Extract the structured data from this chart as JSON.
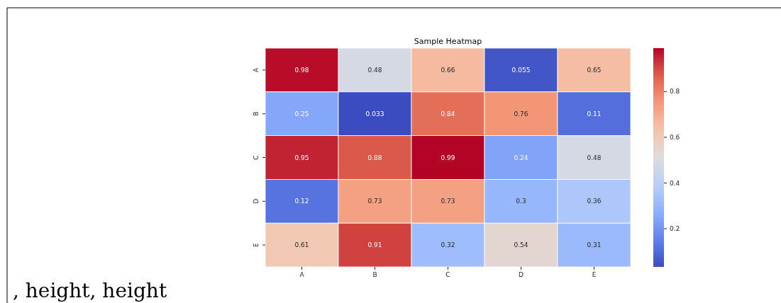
{
  "chart_data": {
    "type": "heatmap",
    "title": "Sample Heatmap",
    "categories": [
      "A",
      "B",
      "C",
      "D",
      "E"
    ],
    "y_categories": [
      "A",
      "B",
      "C",
      "D",
      "E"
    ],
    "cells": [
      [
        0.98,
        0.48,
        0.66,
        0.055,
        0.65
      ],
      [
        0.25,
        0.033,
        0.84,
        0.76,
        0.11
      ],
      [
        0.95,
        0.88,
        0.99,
        0.24,
        0.48
      ],
      [
        0.12,
        0.73,
        0.73,
        0.3,
        0.36
      ],
      [
        0.61,
        0.91,
        0.32,
        0.54,
        0.31
      ]
    ],
    "clim": [
      0.033,
      0.99
    ],
    "cticks": [
      0.2,
      0.4,
      0.6,
      0.8
    ],
    "data_labels": true,
    "annotations": [
      ", height, height"
    ]
  }
}
